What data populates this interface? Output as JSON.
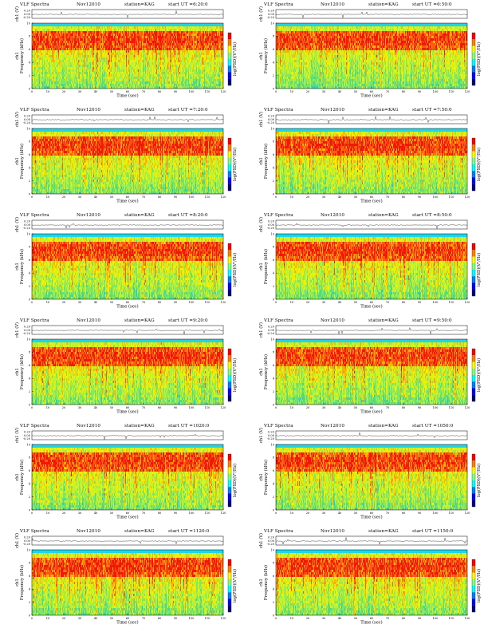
{
  "page": {
    "panel_template": {
      "title": "VLF Spectra",
      "date": "Nov12010",
      "station": "station=KAG",
      "start_prefix": "start UT =",
      "wave_label": "ch1 (V)",
      "freq_label_line1": "ch1",
      "freq_label_line2": "Frequency (kHz)",
      "xlabel": "Time (sec)",
      "colorbar_label": "log(PSD)(V²/Hz)"
    },
    "panels": [
      {
        "start": "6:20:0"
      },
      {
        "start": "6:50:0"
      },
      {
        "start": "7:20:0"
      },
      {
        "start": "7:50:0"
      },
      {
        "start": "8:20:0"
      },
      {
        "start": "8:50:0"
      },
      {
        "start": "9:20:0"
      },
      {
        "start": "9:50:0"
      },
      {
        "start": "1020:0"
      },
      {
        "start": "1050:0"
      },
      {
        "start": "1120:0"
      },
      {
        "start": "1150:0"
      }
    ]
  },
  "chart_data": {
    "type": "heatmap",
    "description_of_axes": "Time on x, Frequency on y; colour = log power spectral density",
    "x_ticks": [
      0,
      10,
      20,
      30,
      40,
      50,
      60,
      70,
      80,
      90,
      100,
      110,
      120
    ],
    "xlim": [
      0,
      120
    ],
    "y_ticks": [
      0,
      2,
      4,
      6,
      8,
      10
    ],
    "ylim": [
      0,
      10
    ],
    "wave_ticks": [
      "0.20",
      "0.00",
      "-0.20"
    ],
    "colormap": [
      "#00007f",
      "#0000ff",
      "#007fff",
      "#00ffff",
      "#7fff7f",
      "#ffff00",
      "#ff7f00",
      "#ff0000"
    ],
    "colors": {
      "band_high": "#ff2a10",
      "band_mid": "#e8f000",
      "low": "#44dd77",
      "top_strip": "#20d6e6"
    }
  }
}
